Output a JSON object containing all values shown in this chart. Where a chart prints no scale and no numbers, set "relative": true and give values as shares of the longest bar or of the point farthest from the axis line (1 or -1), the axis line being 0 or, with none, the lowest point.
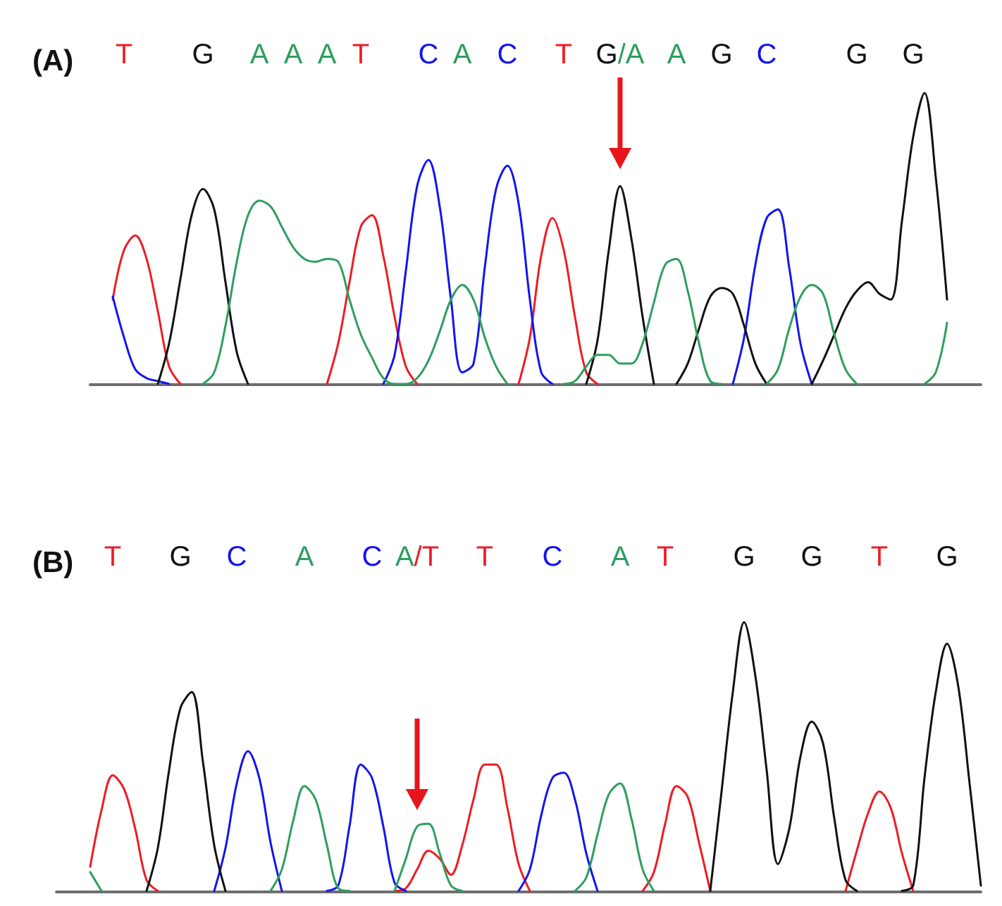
{
  "chart_data": [
    {
      "type": "line",
      "title": "(A)",
      "relative": true,
      "categories": [
        null,
        null,
        null,
        "T",
        null,
        null,
        null,
        null,
        null,
        null,
        "G",
        null,
        null,
        null,
        null,
        "A",
        null,
        null,
        "A",
        null,
        null,
        "A",
        null,
        null,
        "T",
        null,
        null,
        null,
        null,
        null,
        "C",
        null,
        null,
        "A",
        null,
        null,
        null,
        "C",
        null,
        null,
        null,
        null,
        "T",
        null,
        null,
        null,
        null,
        "G/A",
        null,
        null,
        null,
        null,
        "A",
        null,
        null,
        null,
        "G",
        null,
        null,
        null,
        "C",
        null,
        null,
        null,
        null,
        null,
        null,
        null,
        "G",
        null,
        null,
        null,
        null,
        "G",
        null,
        null,
        null,
        null,
        null,
        null
      ],
      "series": [
        {
          "color": "#ee1c24",
          "values": [
            null,
            null,
            0.29,
            0.46,
            0.51,
            0.43,
            0.25,
            0.06,
            0,
            null,
            null,
            null,
            null,
            null,
            null,
            null,
            null,
            null,
            null,
            null,
            null,
            0,
            0.14,
            0.35,
            0.54,
            0.58,
            0.44,
            0.23,
            0.06,
            0,
            null,
            null,
            null,
            null,
            null,
            null,
            null,
            null,
            0,
            0.16,
            0.44,
            0.57,
            0.46,
            0.23,
            0.04,
            0,
            null,
            null,
            null,
            null,
            null,
            null,
            null,
            null,
            null,
            null,
            null,
            null,
            null,
            null,
            null,
            null,
            null,
            null,
            null,
            null,
            null,
            null,
            null,
            null,
            null,
            null,
            null,
            null,
            null,
            null,
            null,
            null,
            null,
            null
          ]
        },
        {
          "color": "#1414f0",
          "values": [
            null,
            null,
            0.3,
            0.16,
            0.05,
            0.02,
            0.01,
            0,
            null,
            null,
            null,
            null,
            null,
            null,
            null,
            null,
            null,
            null,
            null,
            null,
            null,
            null,
            null,
            null,
            null,
            null,
            0,
            0.1,
            0.39,
            0.68,
            0.77,
            0.61,
            0.29,
            0.04,
            0.07,
            0.4,
            0.67,
            0.75,
            0.62,
            0.29,
            0.04,
            0,
            null,
            null,
            null,
            null,
            null,
            null,
            null,
            null,
            null,
            null,
            null,
            null,
            null,
            null,
            null,
            0,
            0.16,
            0.41,
            0.57,
            0.6,
            0.4,
            0.14,
            0,
            null,
            null,
            null,
            null,
            null,
            null,
            null,
            null,
            null,
            null,
            null,
            null,
            null,
            null,
            null
          ]
        },
        {
          "color": "#111111",
          "values": [
            null,
            null,
            null,
            null,
            null,
            null,
            0,
            0.14,
            0.36,
            0.58,
            0.67,
            0.6,
            0.35,
            0.11,
            0,
            null,
            null,
            null,
            null,
            null,
            null,
            null,
            null,
            null,
            null,
            null,
            null,
            null,
            null,
            null,
            null,
            null,
            null,
            null,
            null,
            null,
            null,
            null,
            null,
            null,
            null,
            null,
            null,
            null,
            0,
            0.15,
            0.46,
            0.68,
            0.5,
            0.23,
            0,
            null,
            0,
            0.07,
            0.19,
            0.3,
            0.33,
            0.31,
            0.2,
            0.07,
            0,
            null,
            null,
            null,
            0,
            0.08,
            0.17,
            0.26,
            0.32,
            0.35,
            0.31,
            0.29,
            0.56,
            0.85,
            1,
            0.71,
            0.29,
            null,
            null,
            null
          ]
        },
        {
          "color": "#2e9e5e",
          "values": [
            null,
            null,
            null,
            null,
            null,
            null,
            null,
            null,
            null,
            null,
            0,
            0.04,
            0.2,
            0.42,
            0.58,
            0.63,
            0.61,
            0.54,
            0.47,
            0.43,
            0.42,
            0.43,
            0.42,
            0.29,
            0.17,
            0.09,
            0.02,
            0,
            0,
            0.02,
            0.08,
            0.18,
            0.29,
            0.34,
            0.29,
            0.16,
            0.06,
            0,
            null,
            null,
            null,
            null,
            0,
            0.01,
            0.06,
            0.1,
            0.1,
            0.07,
            0.07,
            0.14,
            0.28,
            0.41,
            0.43,
            0.32,
            0.14,
            0.01,
            0,
            null,
            null,
            null,
            0,
            0.05,
            0.19,
            0.3,
            0.34,
            0.31,
            0.17,
            0.05,
            0,
            null,
            null,
            null,
            null,
            null,
            0,
            0.04,
            0.21,
            null,
            null,
            null
          ]
        }
      ]
    },
    {
      "type": "line",
      "title": "(B)",
      "relative": true,
      "categories": [
        null,
        null,
        null,
        null,
        null,
        "T",
        null,
        null,
        null,
        null,
        null,
        "G",
        null,
        null,
        null,
        null,
        "C",
        null,
        null,
        null,
        null,
        null,
        "A",
        null,
        null,
        null,
        null,
        null,
        "C",
        null,
        null,
        null,
        "A/T",
        null,
        null,
        null,
        null,
        null,
        "T",
        null,
        null,
        null,
        null,
        null,
        "C",
        null,
        null,
        null,
        null,
        null,
        "A",
        null,
        null,
        null,
        "T",
        null,
        null,
        null,
        null,
        null,
        null,
        "G",
        null,
        null,
        null,
        null,
        null,
        "G",
        null,
        null,
        null,
        null,
        null,
        "T",
        null,
        null,
        null,
        null,
        null,
        "G",
        null,
        null,
        null
      ],
      "series": [
        {
          "color": "#ee1c24",
          "values": [
            null,
            null,
            null,
            0.09,
            0.3,
            0.43,
            0.38,
            0.23,
            0.04,
            0,
            null,
            null,
            null,
            null,
            null,
            null,
            null,
            null,
            null,
            null,
            null,
            null,
            null,
            null,
            null,
            null,
            null,
            null,
            null,
            null,
            0,
            0.01,
            0.08,
            0.15,
            0.12,
            0.06,
            0.17,
            0.34,
            0.47,
            0.47,
            0.31,
            0.1,
            0,
            null,
            null,
            null,
            null,
            null,
            null,
            null,
            null,
            null,
            0,
            0.07,
            0.25,
            0.39,
            0.35,
            0.18,
            0,
            null,
            null,
            null,
            null,
            null,
            null,
            null,
            null,
            null,
            null,
            null,
            0,
            0.15,
            0.29,
            0.37,
            0.31,
            0.14,
            0,
            null,
            null,
            null,
            null,
            null,
            null
          ]
        },
        {
          "color": "#1414f0",
          "values": [
            null,
            null,
            null,
            null,
            null,
            null,
            null,
            null,
            null,
            null,
            null,
            null,
            null,
            null,
            0,
            0.16,
            0.4,
            0.52,
            0.42,
            0.18,
            0,
            null,
            null,
            null,
            0,
            0.02,
            0.24,
            0.47,
            0.42,
            0.24,
            0.03,
            0,
            null,
            null,
            null,
            null,
            null,
            null,
            null,
            null,
            null,
            0,
            0.08,
            0.28,
            0.42,
            0.44,
            0.34,
            0.14,
            0,
            null,
            null,
            null,
            null,
            null,
            null,
            null,
            null,
            null,
            null,
            null,
            null,
            null,
            null,
            null,
            null,
            null,
            null,
            null,
            null,
            null,
            null,
            null,
            null,
            null,
            null,
            null,
            null,
            null,
            null,
            null,
            null,
            null,
            null
          ]
        },
        {
          "color": "#111111",
          "values": [
            null,
            null,
            null,
            null,
            null,
            null,
            null,
            null,
            0,
            0.16,
            0.45,
            0.68,
            0.74,
            0.48,
            0.17,
            0,
            null,
            null,
            null,
            null,
            null,
            null,
            null,
            null,
            null,
            null,
            null,
            null,
            null,
            null,
            null,
            null,
            null,
            null,
            null,
            null,
            null,
            null,
            null,
            null,
            null,
            null,
            null,
            null,
            null,
            null,
            null,
            null,
            null,
            null,
            null,
            null,
            null,
            null,
            null,
            null,
            null,
            null,
            0,
            0.37,
            0.74,
            1,
            0.8,
            0.45,
            0.1,
            0.23,
            0.5,
            0.63,
            0.55,
            0.27,
            0.04,
            0,
            null,
            null,
            null,
            0,
            0.02,
            0.42,
            0.74,
            0.92,
            0.76,
            0.4,
            0.02
          ]
        },
        {
          "color": "#2e9e5e",
          "values": [
            null,
            null,
            null,
            0.07,
            0,
            null,
            null,
            null,
            null,
            null,
            null,
            null,
            null,
            null,
            null,
            null,
            null,
            null,
            null,
            0,
            0.08,
            0.26,
            0.39,
            0.34,
            0.17,
            0.01,
            0,
            null,
            null,
            null,
            0,
            0.12,
            0.24,
            0.25,
            0.14,
            0.02,
            0,
            null,
            null,
            null,
            null,
            null,
            null,
            null,
            null,
            null,
            0,
            0.05,
            0.21,
            0.36,
            0.4,
            0.27,
            0.08,
            0,
            null,
            null,
            null,
            null,
            null,
            null,
            null,
            null,
            null,
            null,
            null,
            null,
            null,
            null,
            null,
            null,
            null,
            null,
            null,
            null,
            null,
            null,
            null,
            null,
            null,
            null,
            null,
            null,
            null
          ]
        }
      ]
    }
  ]
}
